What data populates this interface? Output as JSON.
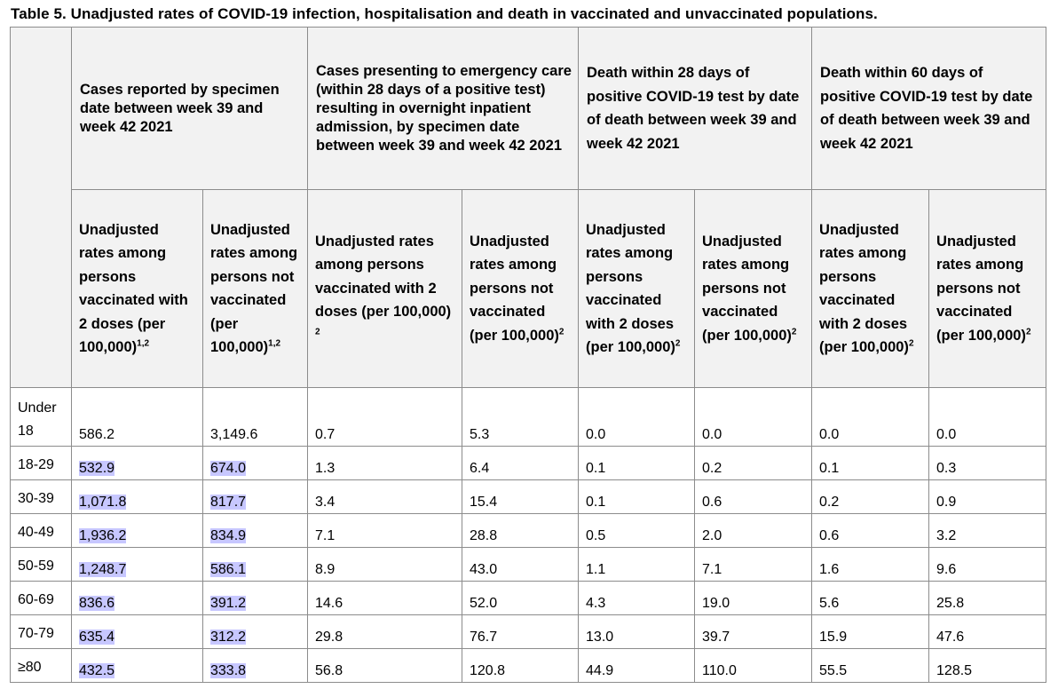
{
  "title": "Table 5. Unadjusted rates of COVID-19 infection, hospitalisation and death in vaccinated and unvaccinated populations.",
  "groups": [
    "Cases reported by specimen date between week 39 and week 42 2021",
    "Cases presenting to emergency care (within 28 days of a positive test) resulting in overnight inpatient admission, by specimen date between week 39 and week 42 2021",
    "Death within 28 days of positive COVID-19 test by date of death between week 39 and week 42 2021",
    "Death within 60 days of positive COVID-19 test by date of death between week 39 and week 42 2021"
  ],
  "subheaders": [
    {
      "text": "Unadjusted rates among persons vaccinated with 2 doses (per 100,000)",
      "sup": "1,2"
    },
    {
      "text": "Unadjusted rates among persons not vaccinated (per 100,000)",
      "sup": "1,2"
    },
    {
      "text": "Unadjusted rates among persons vaccinated with 2 doses (per 100,000)",
      "sup": " 2"
    },
    {
      "text": "Unadjusted rates among persons not vaccinated (per 100,000)",
      "sup": "2"
    },
    {
      "text": "Unadjusted rates among persons vaccinated with 2 doses (per 100,000)",
      "sup": "2"
    },
    {
      "text": "Unadjusted rates among persons not vaccinated (per 100,000)",
      "sup": "2"
    },
    {
      "text": "Unadjusted rates among persons vaccinated with 2 doses (per 100,000)",
      "sup": "2"
    },
    {
      "text": "Unadjusted rates among persons not vaccinated (per 100,000)",
      "sup": "2"
    }
  ],
  "rows": [
    [
      "Under 18",
      "586.2",
      "3,149.6",
      "0.7",
      "5.3",
      "0.0",
      "0.0",
      "0.0",
      "0.0"
    ],
    [
      "18-29",
      "532.9",
      "674.0",
      "1.3",
      "6.4",
      "0.1",
      "0.2",
      "0.1",
      "0.3"
    ],
    [
      "30-39",
      "1,071.8",
      "817.7",
      "3.4",
      "15.4",
      "0.1",
      "0.6",
      "0.2",
      "0.9"
    ],
    [
      "40-49",
      "1,936.2",
      "834.9",
      "7.1",
      "28.8",
      "0.5",
      "2.0",
      "0.6",
      "3.2"
    ],
    [
      "50-59",
      "1,248.7",
      "586.1",
      "8.9",
      "43.0",
      "1.1",
      "7.1",
      "1.6",
      "9.6"
    ],
    [
      "60-69",
      "836.6",
      "391.2",
      "14.6",
      "52.0",
      "4.3",
      "19.0",
      "5.6",
      "25.8"
    ],
    [
      "70-79",
      "635.4",
      "312.2",
      "29.8",
      "76.7",
      "13.0",
      "39.7",
      "15.9",
      "47.6"
    ],
    [
      "≥80",
      "432.5",
      "333.8",
      "56.8",
      "120.8",
      "44.9",
      "110.0",
      "55.5",
      "128.5"
    ]
  ],
  "colors": {
    "header_bg": "#f2f2f2",
    "border": "#8c8c8c",
    "selection_highlight": "#c7c7ff"
  }
}
